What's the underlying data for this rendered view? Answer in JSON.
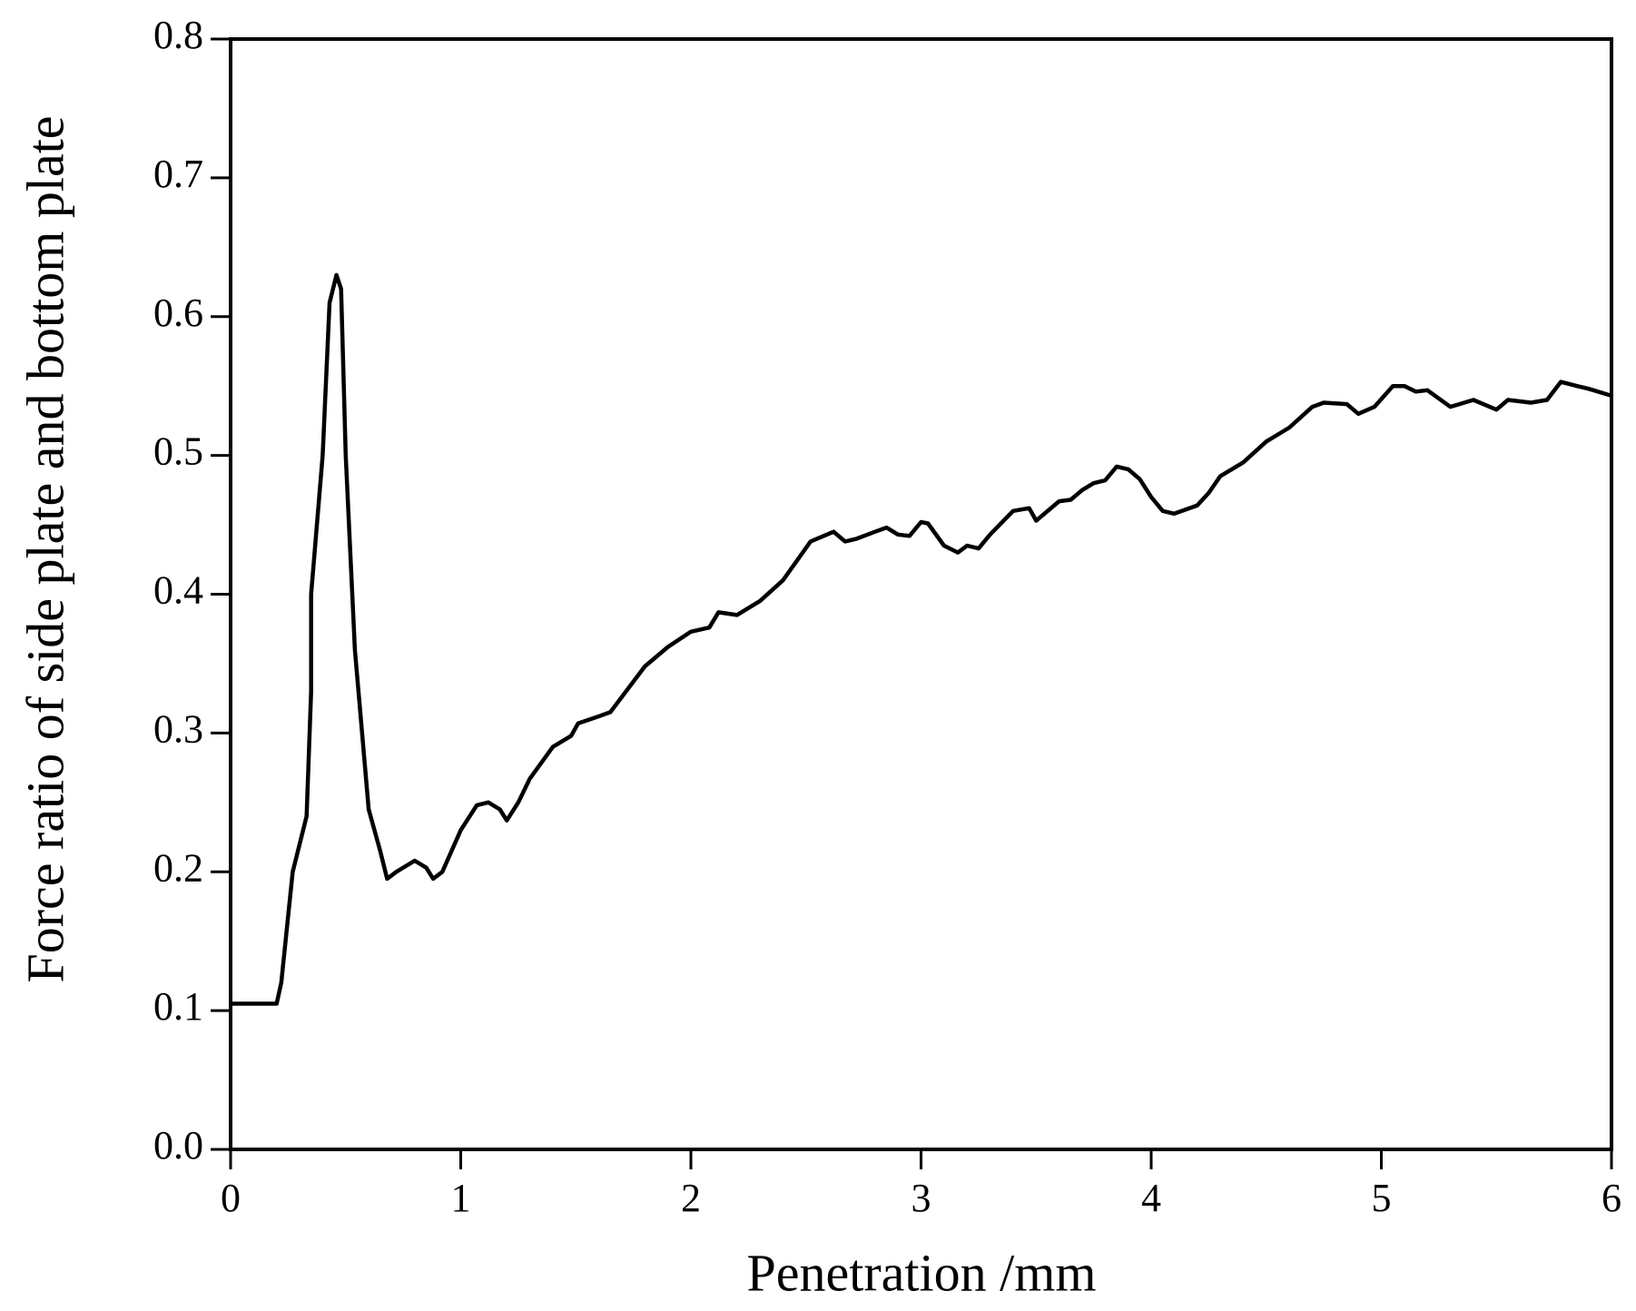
{
  "chart_data": {
    "type": "line",
    "xlabel": "Penetration /mm",
    "ylabel": "Force ratio of side plate and bottom plate",
    "color": "#000000",
    "xlim": [
      0,
      6
    ],
    "xticks": [
      0,
      1,
      2,
      3,
      4,
      5,
      6
    ],
    "ylim": [
      0,
      0.8
    ],
    "yticks": [
      {
        "value": 0,
        "label": "0.0"
      },
      0.1,
      0.2,
      0.3,
      0.4,
      0.5,
      0.6,
      0.7,
      0.8
    ],
    "x": [
      0,
      0.2,
      0.22,
      0.27,
      0.33,
      0.35,
      0.35,
      0.4,
      0.43,
      0.46,
      0.48,
      0.5,
      0.54,
      0.6,
      0.65,
      0.68,
      0.72,
      0.8,
      0.85,
      0.88,
      0.92,
      1.0,
      1.07,
      1.12,
      1.17,
      1.2,
      1.25,
      1.3,
      1.4,
      1.48,
      1.51,
      1.6,
      1.65,
      1.8,
      1.9,
      2.0,
      2.08,
      2.12,
      2.2,
      2.3,
      2.4,
      2.52,
      2.62,
      2.67,
      2.72,
      2.8,
      2.85,
      2.9,
      2.95,
      3.0,
      3.03,
      3.1,
      3.16,
      3.2,
      3.25,
      3.3,
      3.4,
      3.47,
      3.5,
      3.6,
      3.65,
      3.7,
      3.75,
      3.8,
      3.85,
      3.9,
      3.95,
      4.0,
      4.05,
      4.1,
      4.2,
      4.25,
      4.3,
      4.4,
      4.5,
      4.6,
      4.7,
      4.75,
      4.85,
      4.9,
      4.97,
      5.05,
      5.1,
      5.15,
      5.2,
      5.3,
      5.4,
      5.5,
      5.55,
      5.65,
      5.72,
      5.78,
      5.85,
      5.9,
      6.0
    ],
    "values": [
      0.105,
      0.105,
      0.12,
      0.2,
      0.24,
      0.33,
      0.4,
      0.5,
      0.61,
      0.63,
      0.62,
      0.5,
      0.36,
      0.245,
      0.215,
      0.195,
      0.2,
      0.208,
      0.203,
      0.195,
      0.2,
      0.23,
      0.248,
      0.25,
      0.245,
      0.237,
      0.25,
      0.267,
      0.29,
      0.298,
      0.307,
      0.312,
      0.315,
      0.348,
      0.362,
      0.373,
      0.376,
      0.387,
      0.385,
      0.395,
      0.41,
      0.438,
      0.445,
      0.438,
      0.44,
      0.445,
      0.448,
      0.443,
      0.442,
      0.452,
      0.451,
      0.435,
      0.43,
      0.435,
      0.433,
      0.443,
      0.46,
      0.462,
      0.453,
      0.467,
      0.468,
      0.475,
      0.48,
      0.482,
      0.492,
      0.49,
      0.483,
      0.47,
      0.46,
      0.458,
      0.464,
      0.473,
      0.485,
      0.495,
      0.51,
      0.52,
      0.535,
      0.538,
      0.537,
      0.53,
      0.535,
      0.55,
      0.55,
      0.546,
      0.547,
      0.535,
      0.54,
      0.533,
      0.54,
      0.538,
      0.54,
      0.553,
      0.55,
      0.548,
      0.543
    ]
  }
}
